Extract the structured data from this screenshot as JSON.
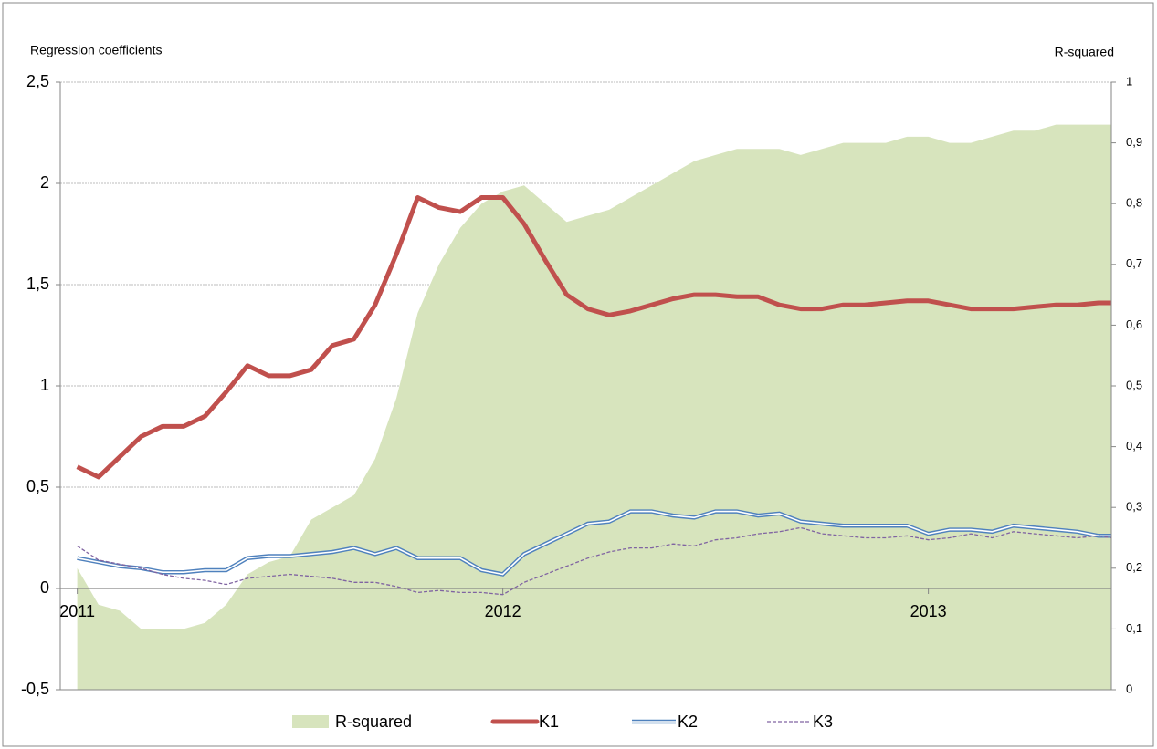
{
  "chart_data": {
    "type": "line",
    "y_label": "Regression coefficients",
    "y2_label": "R-squared",
    "x": [
      2011.0,
      2011.05,
      2011.1,
      2011.15,
      2011.2,
      2011.25,
      2011.3,
      2011.35,
      2011.4,
      2011.45,
      2011.5,
      2011.55,
      2011.6,
      2011.65,
      2011.7,
      2011.75,
      2011.8,
      2011.85,
      2011.9,
      2011.95,
      2012.0,
      2012.05,
      2012.1,
      2012.15,
      2012.2,
      2012.25,
      2012.3,
      2012.35,
      2012.4,
      2012.45,
      2012.5,
      2012.55,
      2012.6,
      2012.65,
      2012.7,
      2012.75,
      2012.8,
      2012.85,
      2012.9,
      2012.95,
      2013.0,
      2013.05,
      2013.1,
      2013.15,
      2013.2,
      2013.25,
      2013.3,
      2013.35,
      2013.4,
      2013.43
    ],
    "xlim": [
      2010.96,
      2013.43
    ],
    "xticks": [
      2011,
      2012,
      2013
    ],
    "ylim": [
      -0.5,
      2.5
    ],
    "yticks": [
      {
        "value": -0.5,
        "label": "-0,5"
      },
      0,
      {
        "value": 0.5,
        "label": "0,5"
      },
      1,
      {
        "value": 1.5,
        "label": "1,5"
      },
      2,
      {
        "value": 2.5,
        "label": "2,5"
      }
    ],
    "y2lim": [
      0,
      1
    ],
    "y2ticks": [
      0,
      {
        "value": 0.1,
        "label": "0,1"
      },
      {
        "value": 0.2,
        "label": "0,2"
      },
      {
        "value": 0.3,
        "label": "0,3"
      },
      {
        "value": 0.4,
        "label": "0,4"
      },
      {
        "value": 0.5,
        "label": "0,5"
      },
      {
        "value": 0.6,
        "label": "0,6"
      },
      {
        "value": 0.7,
        "label": "0,7"
      },
      {
        "value": 0.8,
        "label": "0,8"
      },
      {
        "value": 0.9,
        "label": "0,9"
      },
      1
    ],
    "grid": true,
    "legend": "bottom",
    "series": [
      {
        "name": "R-squared",
        "color": "#d7e4bd",
        "style": "area",
        "axis": "y2",
        "values": [
          0.2,
          0.14,
          0.13,
          0.1,
          0.1,
          0.1,
          0.11,
          0.14,
          0.19,
          0.21,
          0.22,
          0.28,
          0.3,
          0.32,
          0.38,
          0.48,
          0.62,
          0.7,
          0.76,
          0.8,
          0.82,
          0.83,
          0.8,
          0.77,
          0.78,
          0.79,
          0.81,
          0.83,
          0.85,
          0.87,
          0.88,
          0.89,
          0.89,
          0.89,
          0.88,
          0.89,
          0.9,
          0.9,
          0.9,
          0.91,
          0.91,
          0.9,
          0.9,
          0.91,
          0.92,
          0.92,
          0.93,
          0.93,
          0.93,
          0.93
        ]
      },
      {
        "name": "K1",
        "color": "#c0504d",
        "style": "thick",
        "values": [
          0.6,
          0.55,
          0.65,
          0.75,
          0.8,
          0.8,
          0.85,
          0.97,
          1.1,
          1.05,
          1.05,
          1.08,
          1.2,
          1.23,
          1.4,
          1.65,
          1.93,
          1.88,
          1.86,
          1.93,
          1.93,
          1.8,
          1.62,
          1.45,
          1.38,
          1.35,
          1.37,
          1.4,
          1.43,
          1.45,
          1.45,
          1.44,
          1.44,
          1.4,
          1.38,
          1.38,
          1.4,
          1.4,
          1.41,
          1.42,
          1.42,
          1.4,
          1.38,
          1.38,
          1.38,
          1.39,
          1.4,
          1.4,
          1.41,
          1.41
        ]
      },
      {
        "name": "K2",
        "color": "#4f81bd",
        "style": "double",
        "values": [
          0.15,
          0.13,
          0.11,
          0.1,
          0.08,
          0.08,
          0.09,
          0.09,
          0.15,
          0.16,
          0.16,
          0.17,
          0.18,
          0.2,
          0.17,
          0.2,
          0.15,
          0.15,
          0.15,
          0.09,
          0.07,
          0.17,
          0.22,
          0.27,
          0.32,
          0.33,
          0.38,
          0.38,
          0.36,
          0.35,
          0.38,
          0.38,
          0.36,
          0.37,
          0.33,
          0.32,
          0.31,
          0.31,
          0.31,
          0.31,
          0.27,
          0.29,
          0.29,
          0.28,
          0.31,
          0.3,
          0.29,
          0.28,
          0.26,
          0.26
        ]
      },
      {
        "name": "K3",
        "color": "#8064a2",
        "style": "dashed",
        "values": [
          0.21,
          0.14,
          0.12,
          0.1,
          0.07,
          0.05,
          0.04,
          0.02,
          0.05,
          0.06,
          0.07,
          0.06,
          0.05,
          0.03,
          0.03,
          0.01,
          -0.02,
          -0.01,
          -0.02,
          -0.02,
          -0.03,
          0.03,
          0.07,
          0.11,
          0.15,
          0.18,
          0.2,
          0.2,
          0.22,
          0.21,
          0.24,
          0.25,
          0.27,
          0.28,
          0.3,
          0.27,
          0.26,
          0.25,
          0.25,
          0.26,
          0.24,
          0.25,
          0.27,
          0.25,
          0.28,
          0.27,
          0.26,
          0.25,
          0.26,
          0.25
        ]
      }
    ]
  }
}
